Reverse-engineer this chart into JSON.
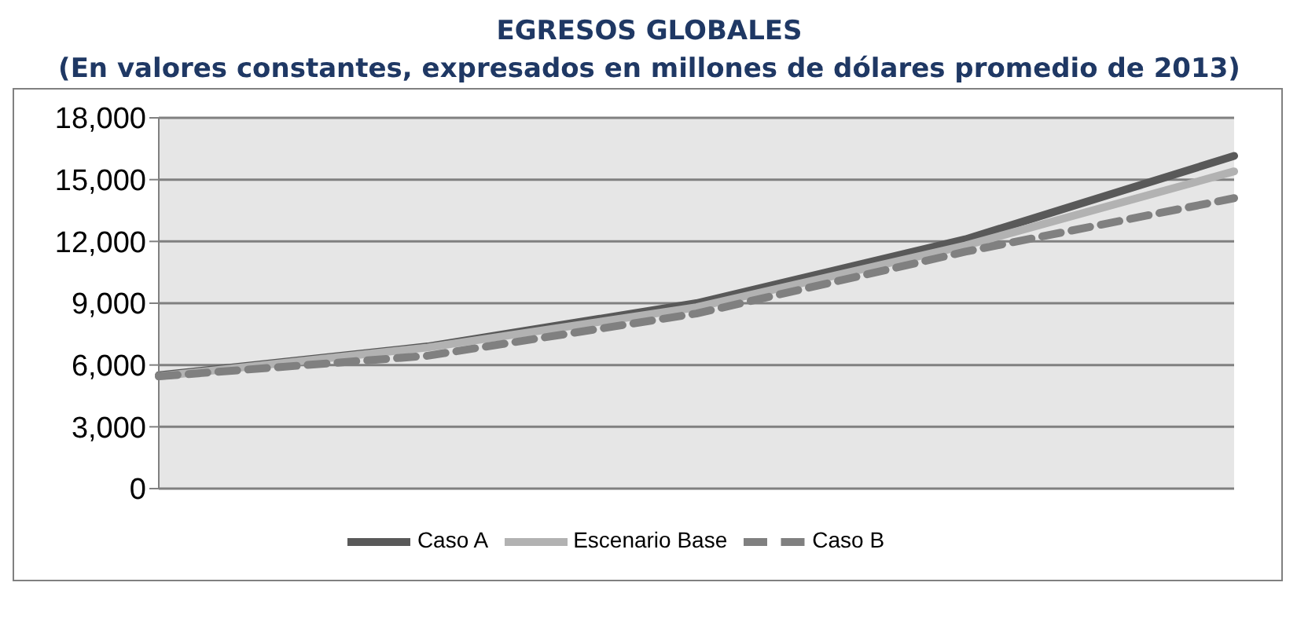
{
  "chart_data": {
    "type": "line",
    "title": "EGRESOS GLOBALES",
    "subtitle": "(En valores constantes, expresados en millones de dólares promedio de 2013)",
    "categories": [
      null,
      null,
      null,
      null,
      null
    ],
    "series": [
      {
        "name": "Caso A",
        "color": "#595959",
        "values": [
          5500,
          6900,
          9000,
          12100,
          16150
        ]
      },
      {
        "name": "Escenario Base",
        "color": "#b2b2b2",
        "values": [
          5450,
          6850,
          8800,
          11800,
          15400
        ]
      },
      {
        "name": "Caso B",
        "color": "#808080",
        "line_style": "dashed",
        "values": [
          5450,
          6450,
          8500,
          11500,
          14100
        ]
      }
    ],
    "ylim": [
      0,
      18000
    ],
    "yticks": [
      0,
      {
        "value": 3000,
        "label": "3,000"
      },
      {
        "value": 6000,
        "label": "6,000"
      },
      {
        "value": 9000,
        "label": "9,000"
      },
      {
        "value": 12000,
        "label": "12,000"
      },
      {
        "value": 15000,
        "label": "15,000"
      },
      {
        "value": 18000,
        "label": "18,000"
      }
    ],
    "grid": "y",
    "legend": "bottom",
    "marker": "none",
    "line_style": "solid"
  }
}
